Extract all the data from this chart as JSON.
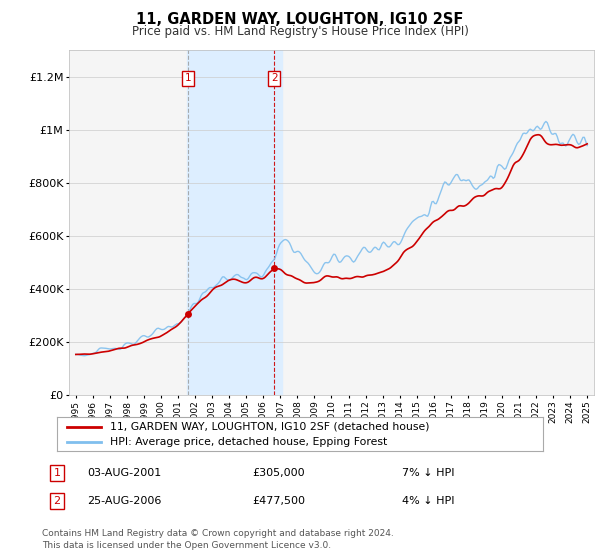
{
  "title": "11, GARDEN WAY, LOUGHTON, IG10 2SF",
  "subtitle": "Price paid vs. HM Land Registry's House Price Index (HPI)",
  "ylim": [
    0,
    1300000
  ],
  "yticks": [
    0,
    200000,
    400000,
    600000,
    800000,
    1000000,
    1200000
  ],
  "ytick_labels": [
    "£0",
    "£200K",
    "£400K",
    "£600K",
    "£800K",
    "£1M",
    "£1.2M"
  ],
  "hpi_color": "#80bfee",
  "price_color": "#cc0000",
  "highlight_color": "#ddeeff",
  "marker_color": "#cc0000",
  "t1_year": 2001.6,
  "t2_year": 2006.65,
  "t1_price": 305000,
  "t2_price": 477500,
  "transaction1": {
    "date": "03-AUG-2001",
    "price": "£305,000",
    "hpi_diff": "7% ↓ HPI",
    "label": "1"
  },
  "transaction2": {
    "date": "25-AUG-2006",
    "price": "£477,500",
    "hpi_diff": "4% ↓ HPI",
    "label": "2"
  },
  "legend_line1": "11, GARDEN WAY, LOUGHTON, IG10 2SF (detached house)",
  "legend_line2": "HPI: Average price, detached house, Epping Forest",
  "footnote1": "Contains HM Land Registry data © Crown copyright and database right 2024.",
  "footnote2": "This data is licensed under the Open Government Licence v3.0.",
  "background_color": "#ffffff",
  "plot_bg_color": "#f5f5f5"
}
